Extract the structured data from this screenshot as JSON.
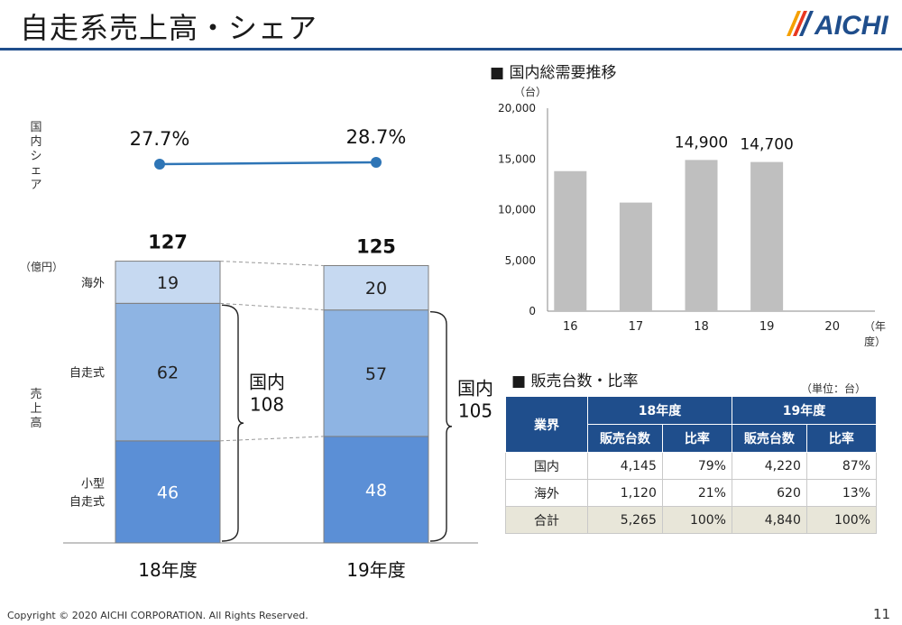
{
  "slide": {
    "title": "自走系売上高・シェア",
    "logo_text": "AICHI",
    "footer": "Copyright © 2020 AICHI CORPORATION. All Rights Reserved.",
    "page_number": "11"
  },
  "sales": {
    "share_axis_label": "国内シェア",
    "sales_axis_label": "売上高",
    "unit_label": "（億円）",
    "category_labels": [
      "海外",
      "自走式",
      "小型\n自走式"
    ],
    "domestic_brace_labels": [
      "国内\n108",
      "国内\n105"
    ]
  },
  "demand": {
    "heading": "■ 国内総需要推移",
    "unit": "（台）",
    "x_unit": "（年度）"
  },
  "units_table": {
    "heading": "■ 販売台数・比率",
    "unit_note": "（単位：台）",
    "header_industry": "業界",
    "years": [
      "18年度",
      "19年度"
    ],
    "subheaders": [
      "販売台数",
      "比率",
      "販売台数",
      "比率"
    ],
    "rows": [
      {
        "label": "国内",
        "cells": [
          "4,145",
          "79%",
          "4,220",
          "87%"
        ]
      },
      {
        "label": "海外",
        "cells": [
          "1,120",
          "21%",
          "620",
          "13%"
        ]
      },
      {
        "label": "合計",
        "cells": [
          "5,265",
          "100%",
          "4,840",
          "100%"
        ]
      }
    ]
  },
  "colors": {
    "title_rule": "#1f4e8c",
    "overseas": "#c6d9f1",
    "self_propelled": "#8eb4e3",
    "compact": "#5b8fd6",
    "share_line": "#2e75b6",
    "demand_bar": "#bfbfbf",
    "table_header": "#1f4e8c",
    "table_total": "#e8e6d9"
  },
  "chart_data": [
    {
      "type": "bar",
      "stacked": true,
      "categories": [
        "18年度",
        "19年度"
      ],
      "series": [
        {
          "name": "小型自走式",
          "values": [
            46,
            48
          ]
        },
        {
          "name": "自走式",
          "values": [
            62,
            57
          ]
        },
        {
          "name": "海外",
          "values": [
            19,
            20
          ]
        }
      ],
      "totals": [
        127,
        125
      ],
      "title": "",
      "ylabel": "売上高"
    },
    {
      "type": "line",
      "categories": [
        "18年度",
        "19年度"
      ],
      "values": [
        27.7,
        28.7
      ],
      "value_labels": [
        "27.7%",
        "28.7%"
      ],
      "ylabel": "国内シェア"
    },
    {
      "type": "bar",
      "title": "国内総需要推移",
      "categories": [
        "16",
        "17",
        "18",
        "19",
        "20"
      ],
      "values": [
        13800,
        10700,
        14900,
        14700,
        null
      ],
      "data_labels": [
        "",
        "",
        "14,900",
        "14,700",
        ""
      ],
      "ylim": [
        0,
        20000
      ],
      "yticks": [
        "20,000",
        "15,000",
        "10,000",
        "5,000",
        "0"
      ],
      "ylabel": "（台）",
      "xlabel": "（年度）",
      "grid": false
    }
  ]
}
